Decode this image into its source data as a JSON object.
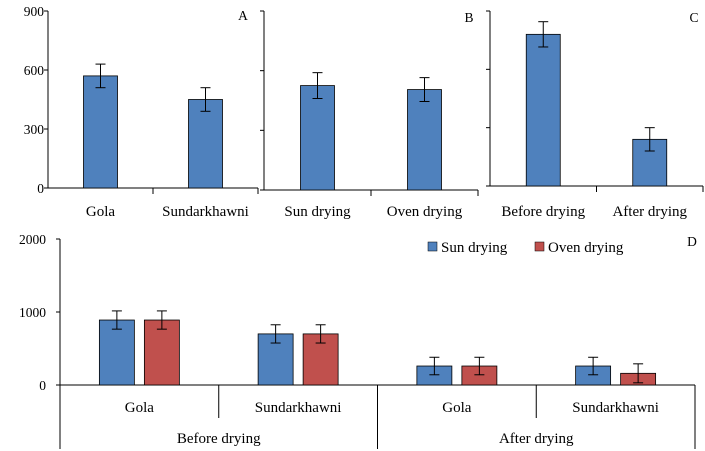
{
  "chart_data": [
    {
      "panel": "A",
      "type": "bar",
      "categories": [
        "Gola",
        "Sundarkhawni"
      ],
      "values": [
        570,
        450
      ],
      "errors": [
        60,
        60
      ],
      "yticks": [
        0,
        300,
        600,
        900
      ],
      "ylim": [
        0,
        900
      ],
      "color": "#4f81bd"
    },
    {
      "panel": "B",
      "type": "bar",
      "categories": [
        "Sun drying",
        "Oven drying"
      ],
      "values": [
        525,
        505
      ],
      "errors": [
        65,
        60
      ],
      "ylim": [
        0,
        900
      ],
      "color": "#4f81bd"
    },
    {
      "panel": "C",
      "type": "bar",
      "categories": [
        "Before drying",
        "After drying"
      ],
      "values": [
        780,
        240
      ],
      "errors": [
        65,
        60
      ],
      "ylim": [
        0,
        900
      ],
      "color": "#4f81bd"
    },
    {
      "panel": "D",
      "type": "bar",
      "groups": [
        "Before drying",
        "After drying"
      ],
      "categories": [
        "Gola",
        "Sundarkhawni",
        "Gola",
        "Sundarkhawni"
      ],
      "series": [
        {
          "name": "Sun drying",
          "color": "#4f81bd",
          "values": [
            890,
            700,
            260,
            260
          ],
          "errors": [
            125,
            125,
            120,
            120
          ]
        },
        {
          "name": "Oven drying",
          "color": "#c0504d",
          "values": [
            890,
            700,
            260,
            160
          ],
          "errors": [
            125,
            125,
            120,
            130
          ]
        }
      ],
      "yticks": [
        0,
        1000,
        2000
      ],
      "ylim": [
        0,
        2000
      ],
      "legend": "top-right"
    }
  ]
}
